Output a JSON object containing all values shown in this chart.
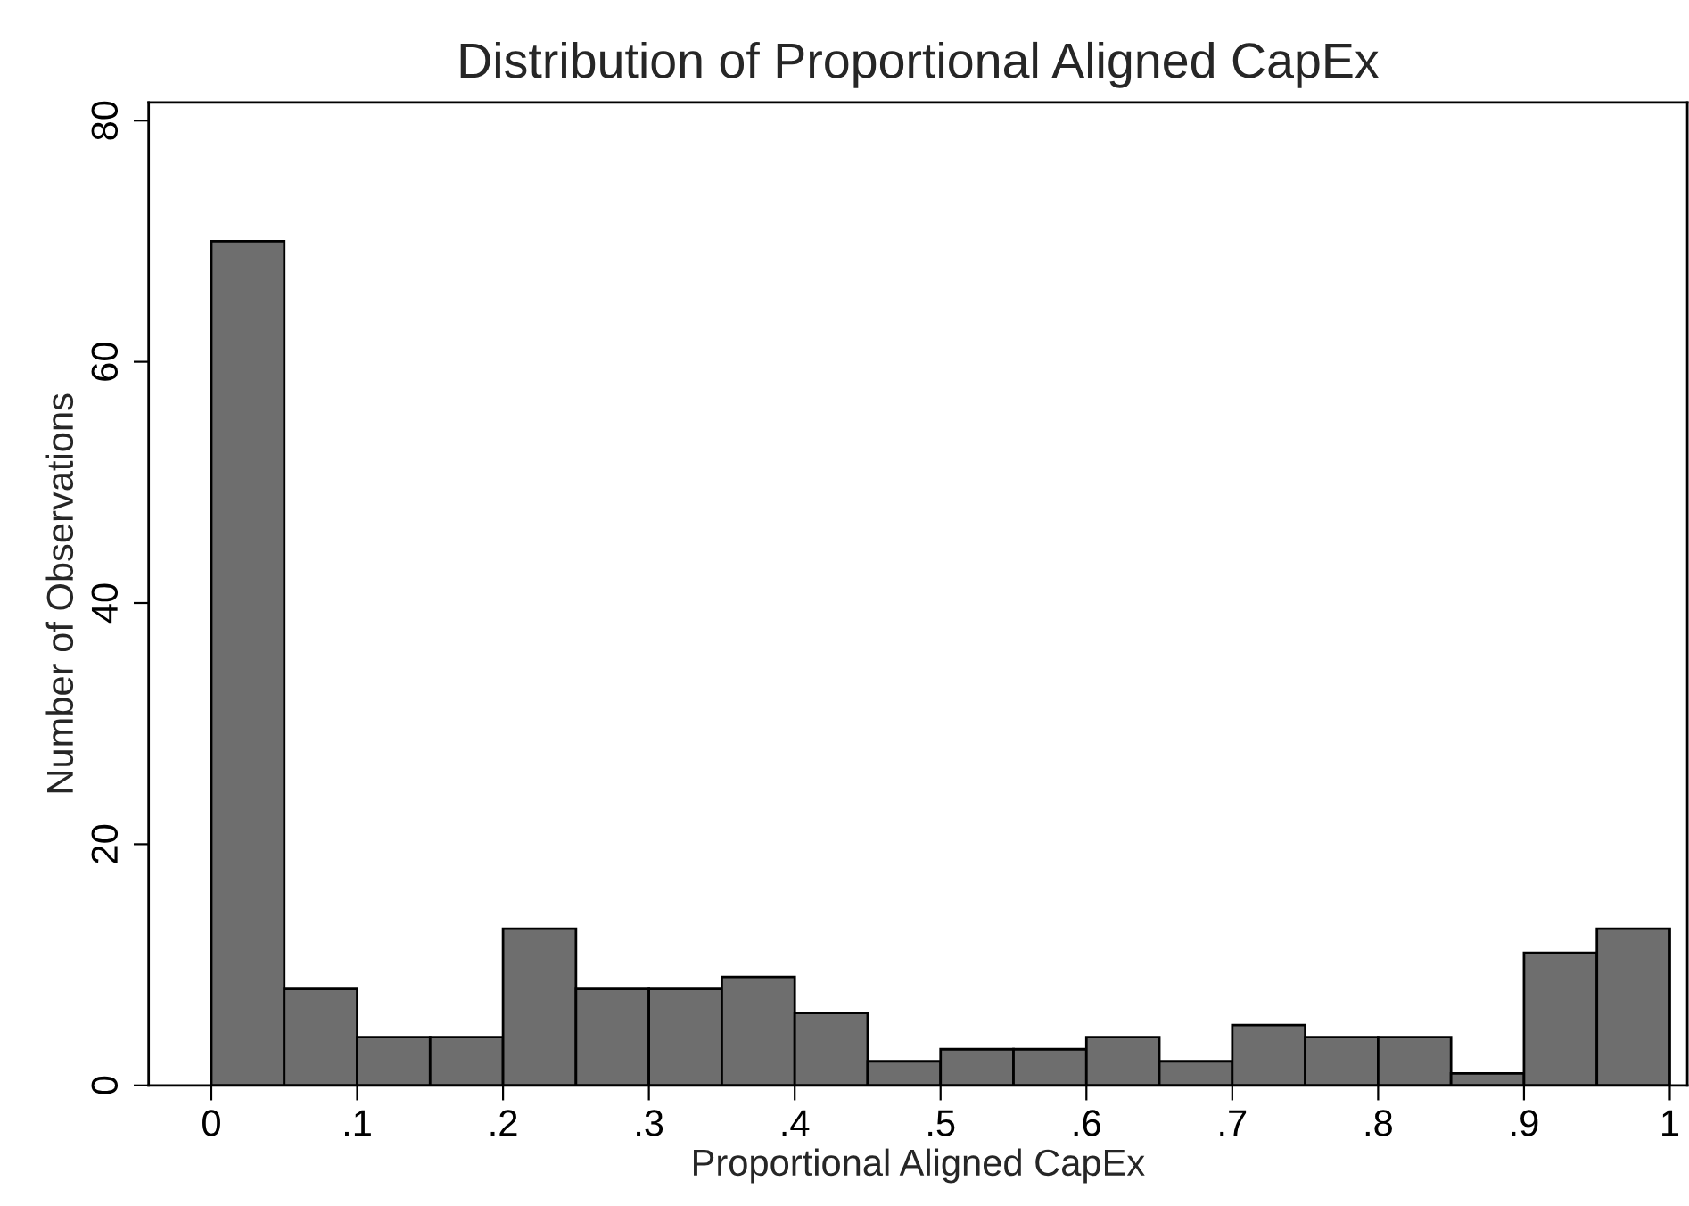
{
  "chart_data": {
    "type": "histogram",
    "title": "Distribution of Proportional Aligned CapEx",
    "xlabel": "Proportional Aligned CapEx",
    "ylabel": "Number of Observations",
    "bins": [
      0,
      0.05,
      0.1,
      0.15,
      0.2,
      0.25,
      0.3,
      0.35,
      0.4,
      0.45,
      0.5,
      0.55,
      0.6,
      0.65,
      0.7,
      0.75,
      0.8,
      0.85,
      0.9,
      0.95,
      1
    ],
    "values": [
      70,
      8,
      4,
      4,
      13,
      8,
      8,
      9,
      6,
      2,
      3,
      3,
      4,
      2,
      5,
      4,
      4,
      1,
      11,
      13
    ],
    "color": "#6e6e6e",
    "xlim": [
      -0.043,
      1.012
    ],
    "ylim": [
      0,
      81.5
    ],
    "xticks": [
      0,
      {
        "value": 0.1,
        "label": ".1"
      },
      {
        "value": 0.2,
        "label": ".2"
      },
      {
        "value": 0.3,
        "label": ".3"
      },
      {
        "value": 0.4,
        "label": ".4"
      },
      {
        "value": 0.5,
        "label": ".5"
      },
      {
        "value": 0.6,
        "label": ".6"
      },
      {
        "value": 0.7,
        "label": ".7"
      },
      {
        "value": 0.8,
        "label": ".8"
      },
      {
        "value": 0.9,
        "label": ".9"
      },
      1
    ],
    "yticks": [
      0,
      20,
      40,
      60,
      80
    ],
    "grid": false
  }
}
